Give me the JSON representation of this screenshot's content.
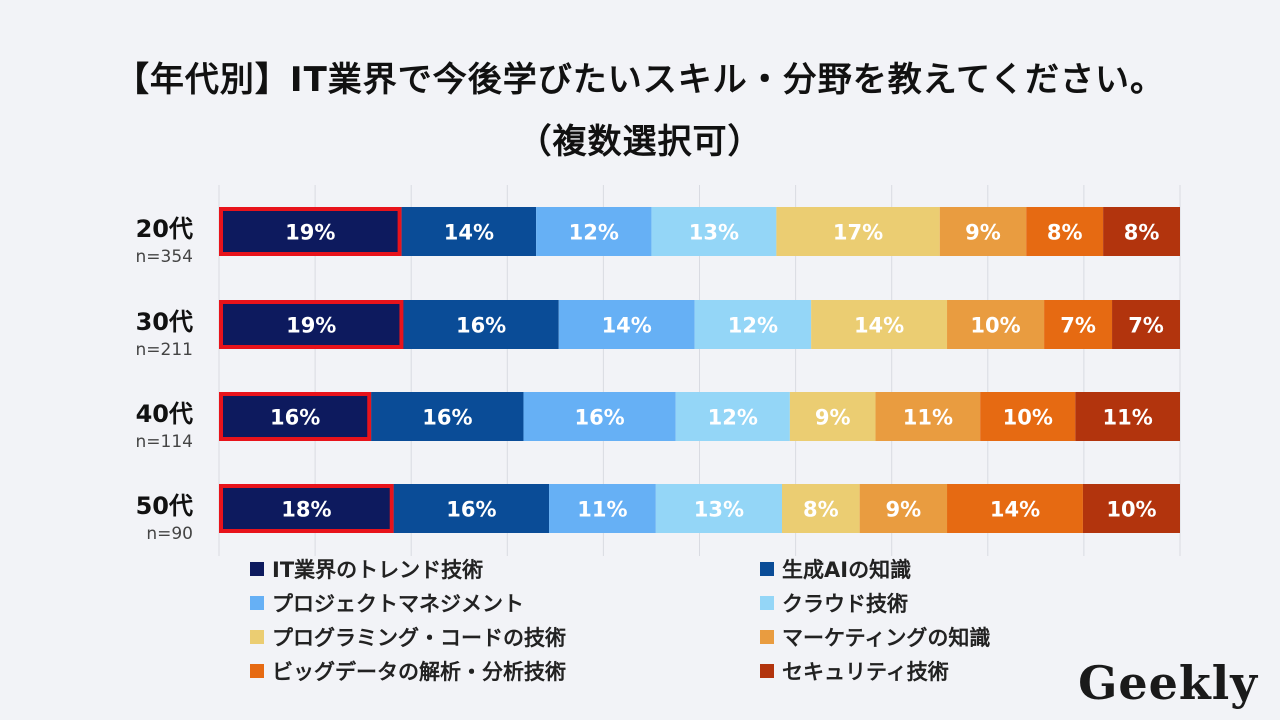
{
  "title_line1": "【年代別】IT業界で今後学びたいスキル・分野を教えてください。",
  "title_line2": "（複数選択可）",
  "logo_text": "Geekly",
  "chart_data": {
    "type": "bar",
    "orientation": "horizontal",
    "stacked": true,
    "normalized": true,
    "categories": [
      "20代",
      "30代",
      "40代",
      "50代"
    ],
    "sample_sizes": [
      "n=354",
      "n=211",
      "n=114",
      "n=90"
    ],
    "xlim": [
      0,
      100
    ],
    "grid": true,
    "legend_position": "bottom",
    "highlight_series": "IT業界のトレンド技術",
    "highlight_color": "#e8131b",
    "series": [
      {
        "name": "IT業界のトレンド技術",
        "color": "#0d1a5e",
        "labels": [
          "19%",
          "19%",
          "16%",
          "18%"
        ],
        "values": [
          19,
          19,
          16,
          18
        ]
      },
      {
        "name": "生成AIの知識",
        "color": "#0a4c97",
        "labels": [
          "14%",
          "16%",
          "16%",
          "16%"
        ],
        "values": [
          14,
          16,
          16,
          16
        ]
      },
      {
        "name": "プロジェクトマネジメント",
        "color": "#66b0f5",
        "labels": [
          "12%",
          "14%",
          "16%",
          "11%"
        ],
        "values": [
          12,
          14,
          16,
          11
        ]
      },
      {
        "name": "クラウド技術",
        "color": "#94d6f7",
        "labels": [
          "13%",
          "12%",
          "12%",
          "13%"
        ],
        "values": [
          13,
          12,
          12,
          13
        ]
      },
      {
        "name": "プログラミング・コードの技術",
        "color": "#ebcd72",
        "labels": [
          "17%",
          "14%",
          "9%",
          "8%"
        ],
        "values": [
          17,
          14,
          9,
          8
        ]
      },
      {
        "name": "マーケティングの知識",
        "color": "#e99c40",
        "labels": [
          "9%",
          "10%",
          "11%",
          "9%"
        ],
        "values": [
          9,
          10,
          11,
          9
        ]
      },
      {
        "name": "ビッグデータの解析・分析技術",
        "color": "#e66a12",
        "labels": [
          "8%",
          "7%",
          "10%",
          "14%"
        ],
        "values": [
          8,
          7,
          10,
          14
        ]
      },
      {
        "name": "セキュリティ技術",
        "color": "#b2340d",
        "labels": [
          "8%",
          "7%",
          "11%",
          "10%"
        ],
        "values": [
          8,
          7,
          11,
          10
        ]
      }
    ]
  }
}
